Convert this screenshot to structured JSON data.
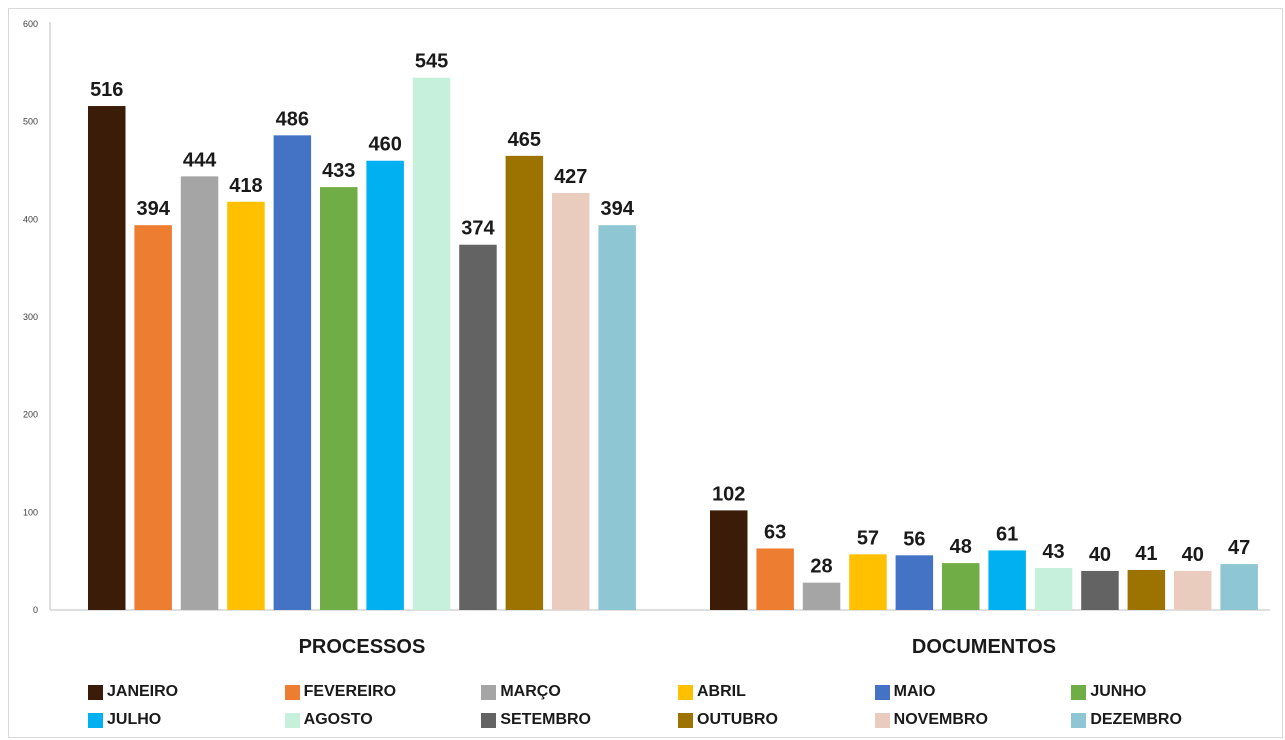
{
  "chart_data": {
    "type": "bar",
    "title": "",
    "xlabel": "",
    "ylabel": "",
    "ylim": [
      0,
      600
    ],
    "yticks": [
      0,
      100,
      200,
      300,
      400,
      500,
      600
    ],
    "grid": false,
    "legend_position": "bottom",
    "categories": [
      "PROCESSOS",
      "DOCUMENTOS"
    ],
    "series": [
      {
        "name": "JANEIRO",
        "color": "#3b1c08",
        "values": [
          516,
          102
        ]
      },
      {
        "name": "FEVEREIRO",
        "color": "#ed7d31",
        "values": [
          394,
          63
        ]
      },
      {
        "name": "MARÇO",
        "color": "#a5a5a5",
        "values": [
          444,
          28
        ]
      },
      {
        "name": "ABRIL",
        "color": "#ffc000",
        "values": [
          418,
          57
        ]
      },
      {
        "name": "MAIO",
        "color": "#4472c4",
        "values": [
          486,
          56
        ]
      },
      {
        "name": "JUNHO",
        "color": "#70ad47",
        "values": [
          433,
          48
        ]
      },
      {
        "name": "JULHO",
        "color": "#00b0f0",
        "values": [
          460,
          61
        ]
      },
      {
        "name": "AGOSTO",
        "color": "#c6efdc",
        "values": [
          545,
          43
        ]
      },
      {
        "name": "SETEMBRO",
        "color": "#636363",
        "values": [
          374,
          40
        ]
      },
      {
        "name": "OUTUBRO",
        "color": "#9c7300",
        "values": [
          465,
          41
        ]
      },
      {
        "name": "NOVEMBRO",
        "color": "#eaccbe",
        "values": [
          427,
          40
        ]
      },
      {
        "name": "DEZEMBRO",
        "color": "#8ec6d4",
        "values": [
          394,
          47
        ]
      }
    ]
  }
}
